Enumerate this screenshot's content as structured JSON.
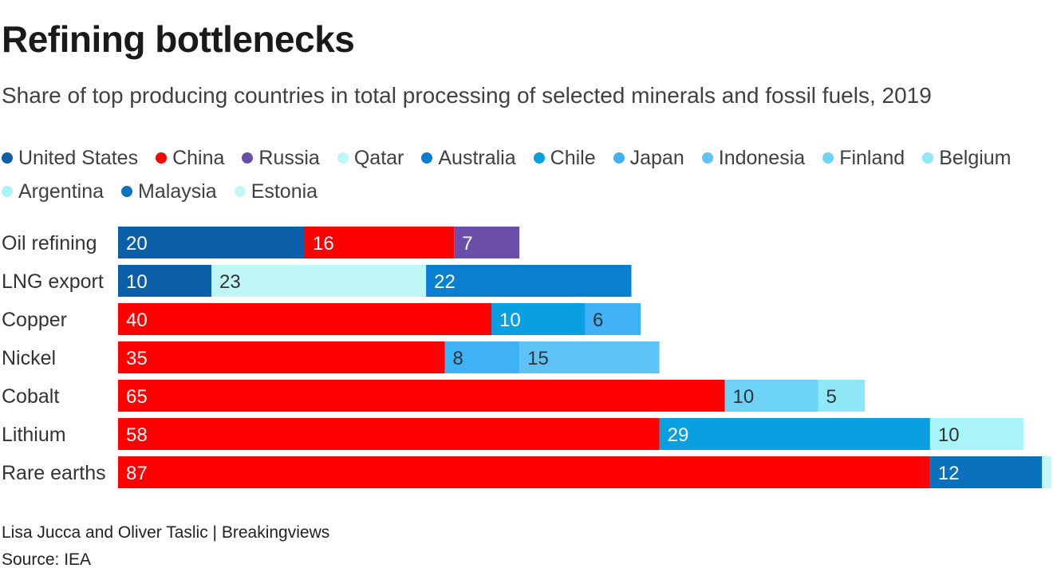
{
  "title": "Refining bottlenecks",
  "subtitle": "Share of top producing countries in total processing of selected minerals and fossil fuels, 2019",
  "footer": {
    "credit": "Lisa Jucca and Oliver Taslic | Breakingviews",
    "source": "Source: IEA"
  },
  "chart_data": {
    "type": "bar",
    "orientation": "horizontal",
    "stacked": true,
    "unit": "%",
    "xlim": [
      0,
      100
    ],
    "grid": false,
    "legend_position": "top",
    "categories": [
      "Oil refining",
      "LNG export",
      "Copper",
      "Nickel",
      "Cobalt",
      "Lithium",
      "Rare earths"
    ],
    "legend": [
      {
        "name": "United States",
        "color": "#0a5fa8"
      },
      {
        "name": "China",
        "color": "#ff0000"
      },
      {
        "name": "Russia",
        "color": "#6b4ea8"
      },
      {
        "name": "Qatar",
        "color": "#bff7f7"
      },
      {
        "name": "Australia",
        "color": "#0a7fcf"
      },
      {
        "name": "Chile",
        "color": "#0a9fe0"
      },
      {
        "name": "Japan",
        "color": "#3fb2f5"
      },
      {
        "name": "Indonesia",
        "color": "#5ec3f7"
      },
      {
        "name": "Finland",
        "color": "#6dd4f8"
      },
      {
        "name": "Belgium",
        "color": "#8ee8f8"
      },
      {
        "name": "Argentina",
        "color": "#a8f4f8"
      },
      {
        "name": "Malaysia",
        "color": "#0a72bd"
      },
      {
        "name": "Estonia",
        "color": "#c4f8f8"
      }
    ],
    "bars": [
      {
        "category": "Oil refining",
        "segments": [
          {
            "country": "United States",
            "value": 20,
            "color": "#0a5fa8"
          },
          {
            "country": "China",
            "value": 16,
            "color": "#ff0000"
          },
          {
            "country": "Russia",
            "value": 7,
            "color": "#6b4ea8"
          }
        ]
      },
      {
        "category": "LNG export",
        "segments": [
          {
            "country": "United States",
            "value": 10,
            "color": "#0a5fa8"
          },
          {
            "country": "Qatar",
            "value": 23,
            "color": "#bff7f7"
          },
          {
            "country": "Australia",
            "value": 22,
            "color": "#0a7fcf"
          }
        ]
      },
      {
        "category": "Copper",
        "segments": [
          {
            "country": "China",
            "value": 40,
            "color": "#ff0000"
          },
          {
            "country": "Chile",
            "value": 10,
            "color": "#0a9fe0"
          },
          {
            "country": "Japan",
            "value": 6,
            "color": "#3fb2f5"
          }
        ]
      },
      {
        "category": "Nickel",
        "segments": [
          {
            "country": "China",
            "value": 35,
            "color": "#ff0000"
          },
          {
            "country": "Japan",
            "value": 8,
            "color": "#3fb2f5"
          },
          {
            "country": "Indonesia",
            "value": 15,
            "color": "#5ec3f7"
          }
        ]
      },
      {
        "category": "Cobalt",
        "segments": [
          {
            "country": "China",
            "value": 65,
            "color": "#ff0000"
          },
          {
            "country": "Finland",
            "value": 10,
            "color": "#6dd4f8"
          },
          {
            "country": "Belgium",
            "value": 5,
            "color": "#8ee8f8"
          }
        ]
      },
      {
        "category": "Lithium",
        "segments": [
          {
            "country": "China",
            "value": 58,
            "color": "#ff0000"
          },
          {
            "country": "Chile",
            "value": 29,
            "color": "#0a9fe0"
          },
          {
            "country": "Argentina",
            "value": 10,
            "color": "#a8f4f8"
          }
        ]
      },
      {
        "category": "Rare earths",
        "segments": [
          {
            "country": "China",
            "value": 87,
            "color": "#ff0000"
          },
          {
            "country": "Malaysia",
            "value": 12,
            "color": "#0a72bd"
          },
          {
            "country": "Estonia",
            "value": 1,
            "color": "#c4f8f8",
            "label": false
          }
        ]
      }
    ]
  }
}
